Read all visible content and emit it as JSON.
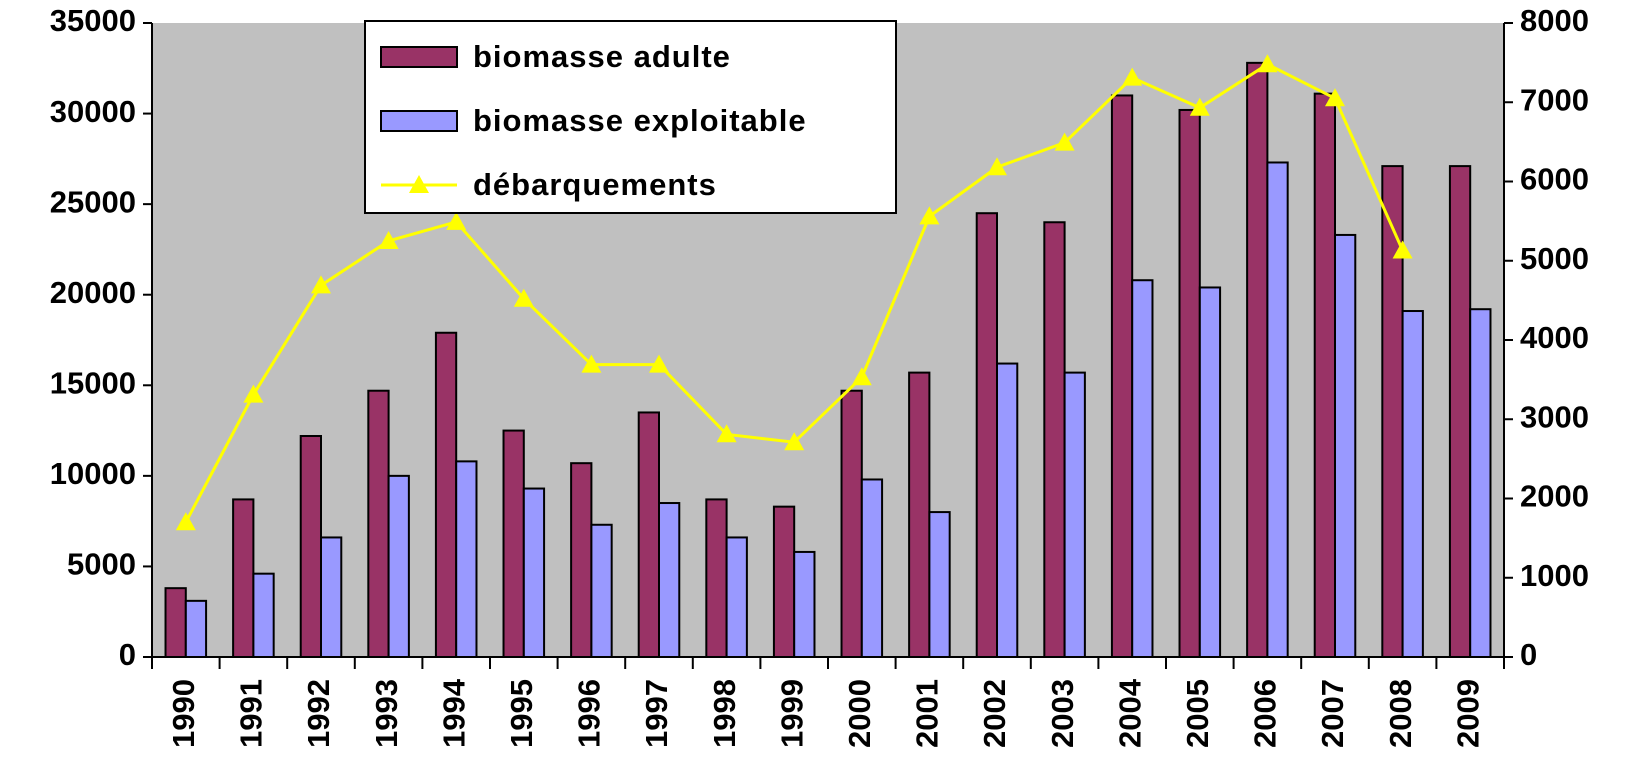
{
  "chart_data": {
    "type": "bar",
    "categories": [
      "1990",
      "1991",
      "1992",
      "1993",
      "1994",
      "1995",
      "1996",
      "1997",
      "1998",
      "1999",
      "2000",
      "2001",
      "2002",
      "2003",
      "2004",
      "2005",
      "2006",
      "2007",
      "2008",
      "2009"
    ],
    "series": [
      {
        "name": "biomasse adulte",
        "color": "#993366",
        "type": "bar",
        "values": [
          3800,
          8700,
          12200,
          14700,
          17900,
          12500,
          10700,
          13500,
          8700,
          8300,
          14700,
          15700,
          24500,
          24000,
          31000,
          30200,
          32800,
          31100,
          27100,
          27100
        ]
      },
      {
        "name": "biomasse exploitable",
        "color": "#9999ff",
        "type": "bar",
        "values": [
          3100,
          4600,
          6600,
          10000,
          10800,
          9300,
          7300,
          8500,
          6600,
          5800,
          9800,
          8000,
          16200,
          15700,
          20800,
          20400,
          27300,
          23300,
          19100,
          19200
        ]
      },
      {
        "name": "débarquements",
        "color": "#ffff00",
        "type": "line",
        "axis": "y2",
        "values": [
          1700,
          3310,
          4690,
          5250,
          5490,
          4520,
          3690,
          3690,
          2810,
          2710,
          3530,
          5560,
          6180,
          6490,
          7310,
          6930,
          7480,
          7050,
          5130,
          null
        ]
      }
    ],
    "ylim": [
      0,
      35000
    ],
    "yticks": [
      0,
      5000,
      10000,
      15000,
      20000,
      25000,
      30000,
      35000
    ],
    "y2lim": [
      0,
      8000
    ],
    "y2ticks": [
      0,
      1000,
      2000,
      3000,
      4000,
      5000,
      6000,
      7000,
      8000
    ],
    "grid": false,
    "plot_background": "#c0c0c0",
    "legend_position": "top-left"
  }
}
